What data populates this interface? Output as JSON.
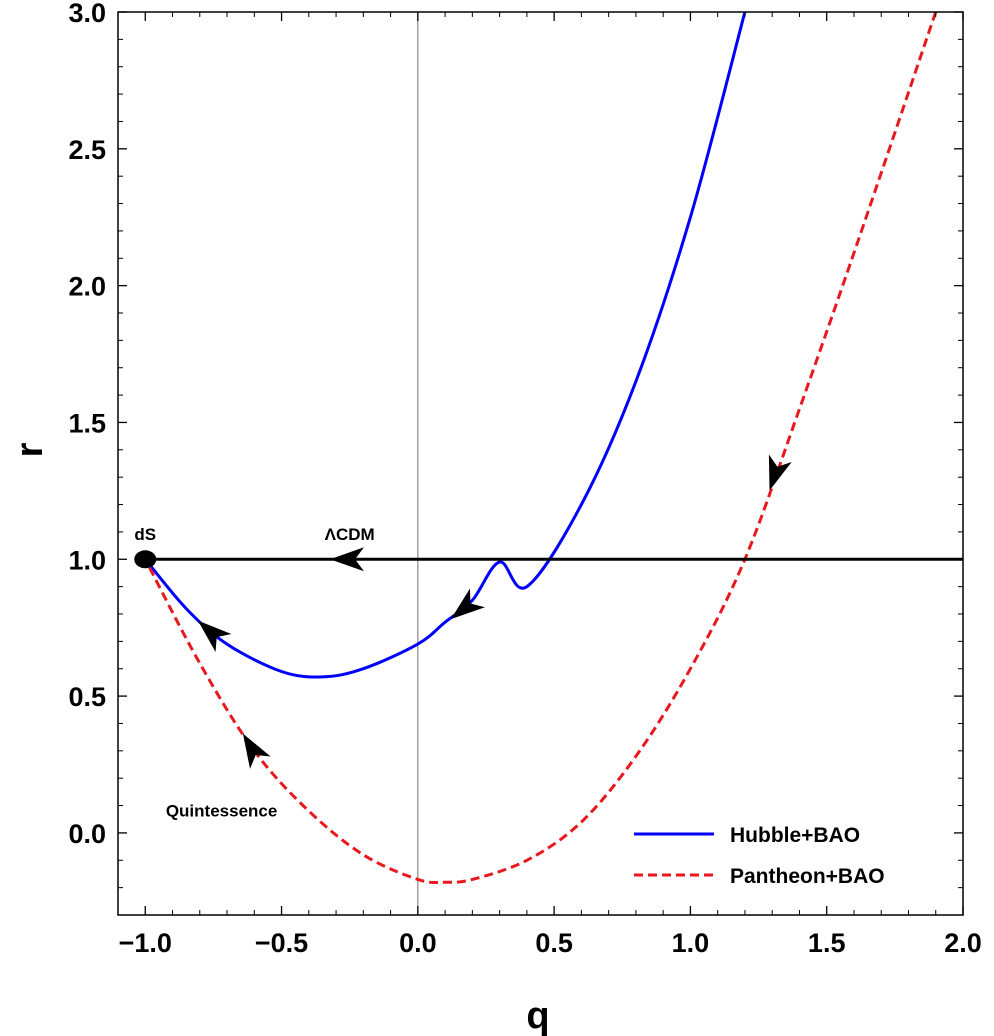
{
  "chart_data": {
    "type": "line",
    "xlabel": "q",
    "ylabel": "r",
    "xlim": [
      -1.1,
      2.0
    ],
    "ylim": [
      -0.3,
      3.0
    ],
    "x_ticks": [
      "−1.0",
      "−0.5",
      "0.0",
      "0.5",
      "1.0",
      "1.5",
      "2.0"
    ],
    "y_ticks": [
      "0.0",
      "0.5",
      "1.0",
      "1.5",
      "2.0",
      "2.5",
      "3.0"
    ],
    "x_tick_values": [
      -1.0,
      -0.5,
      0.0,
      0.5,
      1.0,
      1.5,
      2.0
    ],
    "y_tick_values": [
      0.0,
      0.5,
      1.0,
      1.5,
      2.0,
      2.5,
      3.0
    ],
    "grid": false,
    "legend_position": "bottom-right",
    "series": [
      {
        "name": "Hubble+BAO",
        "color": "#0000ff",
        "style": "solid",
        "x": [
          1.2,
          1.0,
          0.8,
          0.6,
          0.4,
          0.3,
          0.2,
          0.1,
          0.0,
          -0.2,
          -0.35,
          -0.5,
          -0.7,
          -0.85,
          -1.0
        ],
        "y": [
          3.0,
          2.25,
          1.65,
          1.2,
          0.9,
          0.99,
          0.85,
          0.77,
          0.69,
          0.6,
          0.57,
          0.59,
          0.69,
          0.82,
          1.0
        ]
      },
      {
        "name": "Pantheon+BAO",
        "color": "#e8181e",
        "style": "dashed",
        "x": [
          1.9,
          1.6,
          1.4,
          1.2,
          1.0,
          0.8,
          0.6,
          0.4,
          0.2,
          0.1,
          0.0,
          -0.2,
          -0.4,
          -0.6,
          -0.8,
          -1.0
        ],
        "y": [
          3.0,
          2.12,
          1.55,
          1.0,
          0.6,
          0.28,
          0.04,
          -0.1,
          -0.17,
          -0.18,
          -0.17,
          -0.08,
          0.08,
          0.3,
          0.62,
          1.0
        ]
      },
      {
        "name": "",
        "color": "#000000",
        "style": "solid",
        "x": [
          -1.0,
          2.0
        ],
        "y": [
          1.0,
          1.0
        ]
      }
    ],
    "annotations": [
      {
        "text": "dS",
        "x": -1.0,
        "y": 1.07
      },
      {
        "text": "ΛCDM",
        "x": -0.25,
        "y": 1.07
      },
      {
        "text": "Quintessence",
        "x": -0.72,
        "y": 0.06
      }
    ],
    "fixed_point": {
      "x": -1.0,
      "y": 1.0
    }
  }
}
